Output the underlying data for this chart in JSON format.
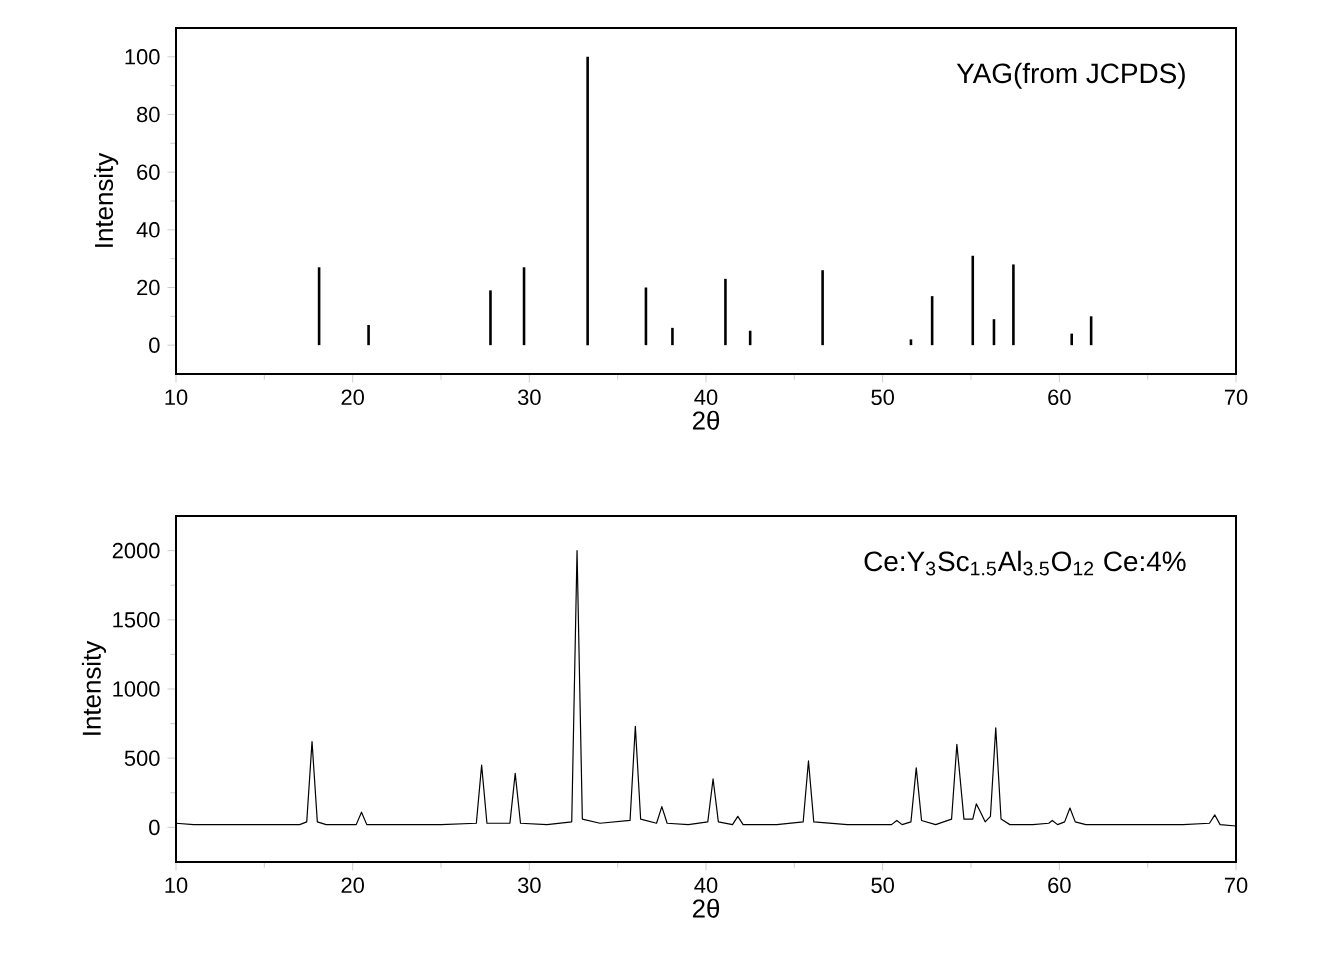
{
  "chart_data": [
    {
      "type": "bar",
      "xlabel": "2θ",
      "ylabel": "Intensity",
      "annotations": [
        "YAG(from JCPDS)"
      ],
      "x": [
        18.1,
        20.9,
        27.8,
        29.7,
        33.3,
        36.6,
        38.1,
        41.1,
        42.5,
        46.6,
        51.6,
        52.8,
        55.1,
        56.3,
        57.4,
        60.7,
        61.8
      ],
      "values": [
        27,
        7,
        19,
        27,
        100,
        20,
        6,
        23,
        5,
        26,
        2,
        17,
        31,
        9,
        28,
        4,
        10
      ],
      "color": "#000000",
      "xlim": [
        10,
        70
      ],
      "ylim": [
        -10,
        110
      ],
      "xticks": [
        10,
        20,
        30,
        40,
        50,
        60,
        70
      ],
      "yticks": [
        0,
        20,
        40,
        60,
        80,
        100
      ]
    },
    {
      "type": "line",
      "xlabel": "2θ",
      "ylabel": "Intensity",
      "annotations": [
        "Ce:Y$_{3}$Sc$_{1.5}$Al$_{3.5}$O$_{12}$ Ce:4%"
      ],
      "x": [
        10,
        11,
        12.5,
        14,
        15.5,
        17,
        17.4,
        17.7,
        18.0,
        18.5,
        20.2,
        20.5,
        20.8,
        23,
        25,
        27.0,
        27.3,
        27.6,
        28.9,
        29.2,
        29.5,
        31,
        32.4,
        32.7,
        33.0,
        34,
        35.7,
        36.0,
        36.3,
        37.2,
        37.5,
        37.8,
        39,
        40.1,
        40.4,
        40.7,
        41.5,
        41.8,
        42.1,
        44,
        45.5,
        45.8,
        46.1,
        48,
        50.5,
        50.8,
        51.1,
        51.6,
        51.9,
        52.2,
        53,
        53.9,
        54.2,
        54.35,
        54.6,
        55.1,
        55.3,
        55.5,
        55.8,
        56.1,
        56.4,
        56.7,
        57.2,
        58.5,
        59.4,
        59.6,
        59.9,
        60.3,
        60.6,
        60.9,
        61.5,
        63,
        65,
        67,
        68.5,
        68.8,
        69.1,
        70
      ],
      "values": [
        30,
        20,
        20,
        20,
        20,
        20,
        40,
        620,
        40,
        20,
        20,
        110,
        20,
        20,
        20,
        30,
        450,
        30,
        30,
        390,
        30,
        20,
        40,
        2000,
        60,
        30,
        50,
        730,
        60,
        30,
        150,
        30,
        20,
        40,
        350,
        40,
        20,
        80,
        20,
        20,
        40,
        480,
        40,
        20,
        20,
        50,
        20,
        40,
        430,
        50,
        20,
        60,
        600,
        400,
        60,
        60,
        170,
        120,
        40,
        80,
        720,
        60,
        20,
        20,
        30,
        50,
        20,
        40,
        140,
        40,
        20,
        20,
        20,
        20,
        30,
        90,
        20,
        10
      ],
      "color": "#000000",
      "xlim": [
        10,
        70
      ],
      "ylim": [
        -250,
        2250
      ],
      "xticks": [
        10,
        20,
        30,
        40,
        50,
        60,
        70
      ],
      "yticks": [
        0,
        500,
        1000,
        1500,
        2000
      ]
    }
  ]
}
